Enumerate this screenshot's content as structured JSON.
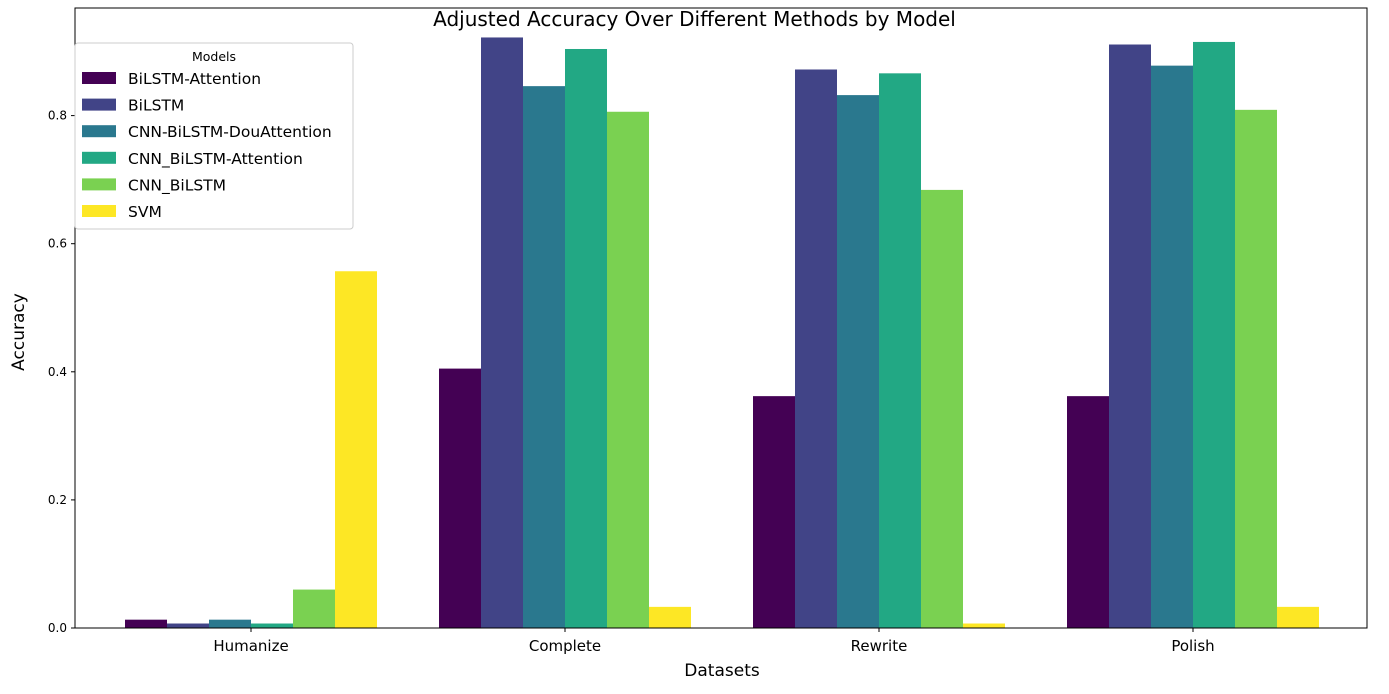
{
  "chart_data": {
    "type": "bar",
    "title": "Adjusted Accuracy Over Different Methods by Model",
    "xlabel": "Datasets",
    "ylabel": "Accuracy",
    "categories": [
      "Humanize",
      "Complete",
      "Rewrite",
      "Polish"
    ],
    "ylim": [
      0,
      0.968
    ],
    "yticks": [
      0.0,
      0.2,
      0.4,
      0.6,
      0.8
    ],
    "ytick_labels": [
      "0.0",
      "0.2",
      "0.4",
      "0.6",
      "0.8"
    ],
    "grid": false,
    "legend": {
      "title": "Models",
      "placement": "upper-left"
    },
    "series": [
      {
        "name": "BiLSTM-Attention",
        "color": "#440154",
        "values": [
          0.013,
          0.405,
          0.362,
          0.362
        ]
      },
      {
        "name": "BiLSTM",
        "color": "#414487",
        "values": [
          0.007,
          0.922,
          0.872,
          0.911
        ]
      },
      {
        "name": "CNN-BiLSTM-DouAttention",
        "color": "#2a788e",
        "values": [
          0.013,
          0.846,
          0.832,
          0.878
        ]
      },
      {
        "name": "CNN_BiLSTM-Attention",
        "color": "#22a884",
        "values": [
          0.007,
          0.904,
          0.866,
          0.915
        ]
      },
      {
        "name": "CNN_BiLSTM",
        "color": "#7ad151",
        "values": [
          0.06,
          0.806,
          0.684,
          0.809
        ]
      },
      {
        "name": "SVM",
        "color": "#fde725",
        "values": [
          0.557,
          0.033,
          0.007,
          0.033
        ]
      }
    ]
  }
}
